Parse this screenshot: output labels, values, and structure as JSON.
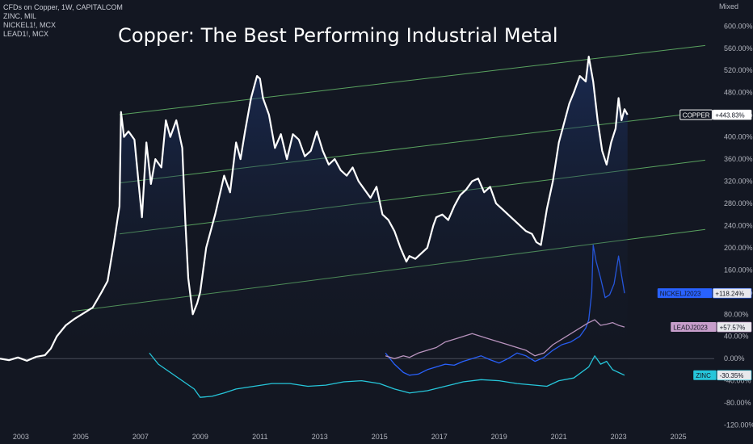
{
  "legend": {
    "line1": "CFDs on Copper, 1W, CAPITALCOM",
    "line2": "ZINC, MIL",
    "line3": "NICKEL1!, MCX",
    "line4": "LEAD1!, MCX"
  },
  "scale_mode": "Mixed",
  "chart_data": {
    "type": "line",
    "title": "Copper: The Best Performing Industrial Metal",
    "xlabel": "",
    "ylabel": "",
    "x_ticks": [
      "2003",
      "2005",
      "2007",
      "2009",
      "2011",
      "2013",
      "2015",
      "2017",
      "2019",
      "2021",
      "2023",
      "2025"
    ],
    "y_ticks": [
      "600.00%",
      "560.00%",
      "520.00%",
      "480.00%",
      "440.00%",
      "400.00%",
      "360.00%",
      "320.00%",
      "280.00%",
      "240.00%",
      "200.00%",
      "160.00%",
      "120.00%",
      "80.00%",
      "40.00%",
      "0.00%",
      "-40.00%",
      "-80.00%",
      "-120.00%"
    ],
    "xlim": [
      2002.3,
      2026.2
    ],
    "ylim": [
      -125,
      615
    ],
    "grid": false,
    "series": [
      {
        "name": "COPPER",
        "badge": "+443.83%",
        "color": "#ffffff",
        "fill": true,
        "x": [
          2002.3,
          2002.6,
          2002.9,
          2003.2,
          2003.5,
          2003.8,
          2004.0,
          2004.2,
          2004.5,
          2004.8,
          2005.1,
          2005.4,
          2005.7,
          2005.9,
          2006.1,
          2006.3,
          2006.35,
          2006.45,
          2006.6,
          2006.8,
          2006.95,
          2007.05,
          2007.2,
          2007.35,
          2007.5,
          2007.7,
          2007.85,
          2008.0,
          2008.2,
          2008.4,
          2008.5,
          2008.6,
          2008.75,
          2008.9,
          2009.0,
          2009.2,
          2009.5,
          2009.8,
          2010.0,
          2010.2,
          2010.35,
          2010.5,
          2010.7,
          2010.9,
          2011.0,
          2011.1,
          2011.3,
          2011.5,
          2011.7,
          2011.9,
          2012.1,
          2012.3,
          2012.5,
          2012.7,
          2012.9,
          2013.1,
          2013.3,
          2013.5,
          2013.7,
          2013.9,
          2014.1,
          2014.3,
          2014.5,
          2014.7,
          2014.9,
          2015.1,
          2015.3,
          2015.5,
          2015.7,
          2015.9,
          2016.0,
          2016.2,
          2016.4,
          2016.6,
          2016.8,
          2016.9,
          2017.1,
          2017.3,
          2017.5,
          2017.7,
          2017.9,
          2018.1,
          2018.3,
          2018.5,
          2018.7,
          2018.9,
          2019.1,
          2019.3,
          2019.5,
          2019.7,
          2019.9,
          2020.1,
          2020.25,
          2020.4,
          2020.6,
          2020.8,
          2021.0,
          2021.2,
          2021.35,
          2021.5,
          2021.7,
          2021.9,
          2022.0,
          2022.15,
          2022.3,
          2022.45,
          2022.6,
          2022.75,
          2022.9,
          2023.0,
          2023.1,
          2023.2,
          2023.3
        ],
        "y": [
          0,
          -3,
          2,
          -4,
          3,
          6,
          18,
          40,
          60,
          72,
          82,
          92,
          120,
          140,
          205,
          275,
          445,
          400,
          410,
          395,
          310,
          255,
          390,
          315,
          360,
          345,
          430,
          400,
          430,
          380,
          250,
          145,
          80,
          100,
          120,
          200,
          260,
          330,
          300,
          390,
          360,
          410,
          470,
          510,
          505,
          470,
          440,
          380,
          405,
          360,
          405,
          395,
          365,
          375,
          410,
          375,
          350,
          360,
          340,
          330,
          345,
          320,
          305,
          290,
          310,
          260,
          250,
          230,
          200,
          175,
          185,
          180,
          190,
          200,
          240,
          255,
          260,
          250,
          275,
          295,
          305,
          320,
          325,
          300,
          310,
          280,
          270,
          260,
          250,
          240,
          230,
          225,
          210,
          205,
          270,
          320,
          390,
          430,
          460,
          480,
          510,
          500,
          545,
          500,
          430,
          375,
          350,
          390,
          415,
          470,
          430,
          450,
          440
        ]
      },
      {
        "name": "NICKELJ2023",
        "badge": "+118.24%",
        "color": "#2962ff",
        "x": [
          2015.2,
          2015.5,
          2015.8,
          2016.0,
          2016.3,
          2016.6,
          2016.9,
          2017.2,
          2017.5,
          2017.8,
          2018.1,
          2018.4,
          2018.7,
          2019.0,
          2019.3,
          2019.6,
          2019.9,
          2020.2,
          2020.5,
          2020.8,
          2021.1,
          2021.4,
          2021.7,
          2021.9,
          2022.0,
          2022.1,
          2022.15,
          2022.25,
          2022.4,
          2022.55,
          2022.7,
          2022.85,
          2023.0,
          2023.1,
          2023.2
        ],
        "y": [
          10,
          -10,
          -25,
          -30,
          -28,
          -20,
          -15,
          -10,
          -12,
          -5,
          0,
          5,
          -2,
          -8,
          0,
          10,
          5,
          -5,
          2,
          15,
          25,
          30,
          40,
          55,
          70,
          120,
          205,
          175,
          145,
          110,
          115,
          135,
          185,
          150,
          118
        ]
      },
      {
        "name": "LEADJ2023",
        "badge": "+57.57%",
        "color": "#c79ecb",
        "x": [
          2015.2,
          2015.5,
          2015.8,
          2016.0,
          2016.3,
          2016.6,
          2016.9,
          2017.2,
          2017.5,
          2017.8,
          2018.1,
          2018.4,
          2018.7,
          2019.0,
          2019.3,
          2019.6,
          2019.9,
          2020.2,
          2020.5,
          2020.8,
          2021.1,
          2021.4,
          2021.7,
          2022.0,
          2022.2,
          2022.4,
          2022.6,
          2022.8,
          2023.0,
          2023.2
        ],
        "y": [
          5,
          0,
          5,
          2,
          10,
          15,
          20,
          30,
          35,
          40,
          45,
          40,
          35,
          30,
          25,
          20,
          15,
          5,
          10,
          25,
          35,
          45,
          55,
          65,
          70,
          60,
          62,
          65,
          60,
          57
        ]
      },
      {
        "name": "ZINC",
        "badge": "-30.35%",
        "color": "#26c6da",
        "x": [
          2007.3,
          2007.6,
          2008.0,
          2008.4,
          2008.8,
          2009.0,
          2009.4,
          2009.8,
          2010.2,
          2010.8,
          2011.4,
          2012.0,
          2012.6,
          2013.2,
          2013.8,
          2014.4,
          2015.0,
          2015.5,
          2016.0,
          2016.6,
          2017.2,
          2017.8,
          2018.4,
          2019.0,
          2019.6,
          2020.2,
          2020.6,
          2021.0,
          2021.5,
          2022.0,
          2022.2,
          2022.4,
          2022.6,
          2022.8,
          2023.0,
          2023.2
        ],
        "y": [
          10,
          -10,
          -25,
          -40,
          -55,
          -70,
          -68,
          -62,
          -55,
          -50,
          -45,
          -45,
          -50,
          -48,
          -42,
          -40,
          -45,
          -55,
          -62,
          -58,
          -50,
          -42,
          -38,
          -40,
          -45,
          -48,
          -50,
          -40,
          -35,
          -15,
          5,
          -10,
          -5,
          -20,
          -25,
          -30
        ]
      }
    ],
    "channel_lines": [
      {
        "x": [
          2006.3,
          2025.9
        ],
        "y": [
          440,
          565
        ],
        "color": "#66bb6a"
      },
      {
        "x": [
          2006.3,
          2025.9
        ],
        "y": [
          317,
          445
        ],
        "color": "#66bb6a"
      },
      {
        "x": [
          2006.3,
          2025.9
        ],
        "y": [
          225,
          358
        ],
        "color": "#66bb6a"
      },
      {
        "x": [
          2004.7,
          2025.9
        ],
        "y": [
          85,
          233
        ],
        "color": "#66bb6a"
      }
    ],
    "baseline": 0
  }
}
